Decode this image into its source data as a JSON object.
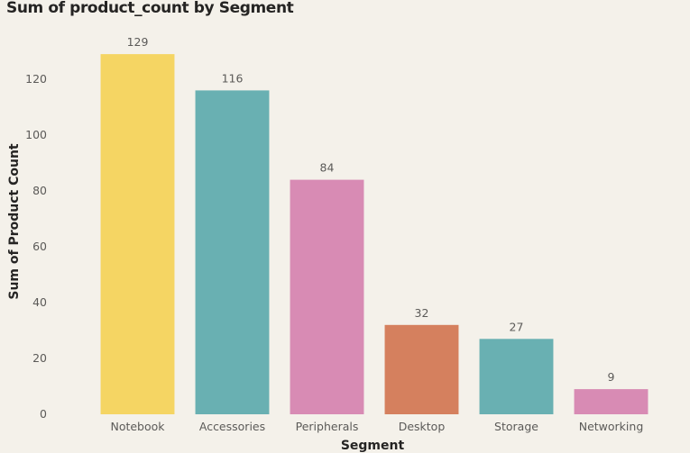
{
  "chart_data": {
    "type": "bar",
    "title": "Sum of product_count by Segment",
    "xlabel": "Segment",
    "ylabel": "Sum of Product Count",
    "categories": [
      "Notebook",
      "Accessories",
      "Peripherals",
      "Desktop",
      "Storage",
      "Networking"
    ],
    "values": [
      129,
      116,
      84,
      32,
      27,
      9
    ],
    "data_labels": [
      "129",
      "116",
      "84",
      "32",
      "27",
      "9"
    ],
    "bar_colors": [
      "#f5d563",
      "#69b0b2",
      "#d88bb4",
      "#d5805e",
      "#69b0b2",
      "#d88bb4"
    ],
    "ylim": [
      0,
      140
    ],
    "yticks": [
      0,
      20,
      40,
      60,
      80,
      100,
      120
    ],
    "grid": false,
    "legend": "none"
  }
}
